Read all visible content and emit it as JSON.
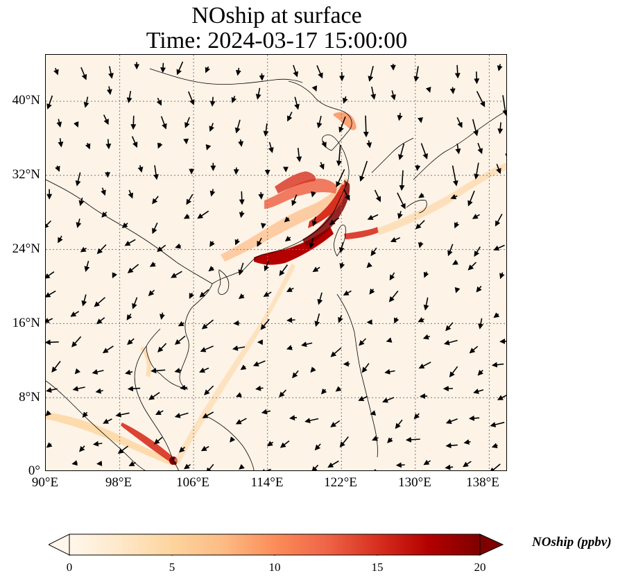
{
  "title": {
    "line1": "NOship at surface",
    "line2": "Time: 2024-03-17 15:00:00"
  },
  "map": {
    "lon_range": [
      90,
      140
    ],
    "lat_range": [
      0,
      45
    ],
    "lat_ticks": [
      "40°N",
      "32°N",
      "24°N",
      "16°N",
      "8°N",
      "0°"
    ],
    "lon_ticks": [
      "90°E",
      "98°E",
      "106°E",
      "114°E",
      "122°E",
      "130°E",
      "138°E"
    ],
    "gridlines": "dotted",
    "background_color": "#fdf3e7",
    "hotspot_color": "#7f0000",
    "variable": "NOship",
    "vector_field": "wind arrows"
  },
  "colorbar": {
    "label": "NOship (ppbv)",
    "ticks": [
      "0",
      "5",
      "10",
      "15",
      "20"
    ],
    "min": 0,
    "max": 20,
    "colormap": [
      "#fff7ec",
      "#fee8c8",
      "#fdd49e",
      "#fdbb84",
      "#fc8d59",
      "#ef6548",
      "#d7301f",
      "#b30000",
      "#7f0000"
    ],
    "extend": "both"
  }
}
